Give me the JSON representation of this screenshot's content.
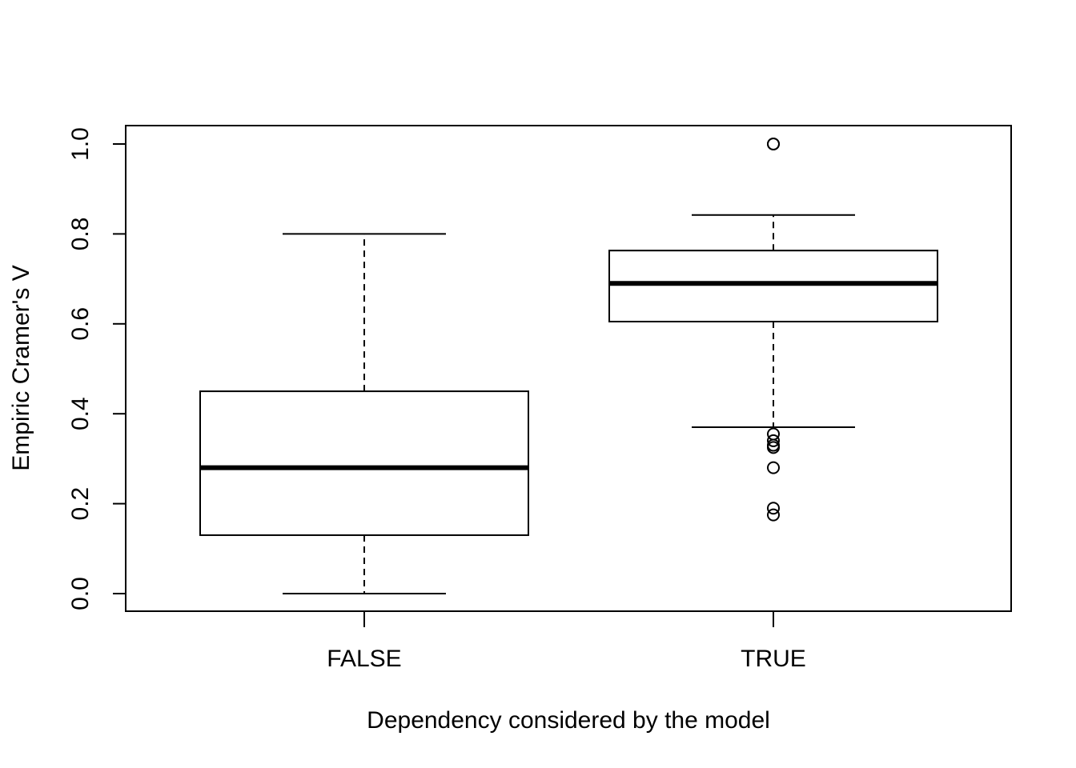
{
  "chart_data": {
    "type": "boxplot",
    "title": "",
    "xlabel": "Dependency considered by the model",
    "ylabel": "Empiric Cramer's V",
    "categories": [
      "FALSE",
      "TRUE"
    ],
    "ylim": [
      -0.04,
      1.04
    ],
    "yticks": [
      0.0,
      0.2,
      0.4,
      0.6,
      0.8,
      1.0
    ],
    "ytick_labels": [
      "0.0",
      "0.2",
      "0.4",
      "0.6",
      "0.8",
      "1.0"
    ],
    "grid": false,
    "legend": "none",
    "boxes": [
      {
        "category": "FALSE",
        "whisker_low": 0.0,
        "q1": 0.13,
        "median": 0.28,
        "q3": 0.45,
        "whisker_high": 0.8,
        "outliers": []
      },
      {
        "category": "TRUE",
        "whisker_low": 0.37,
        "q1": 0.605,
        "median": 0.69,
        "q3": 0.763,
        "whisker_high": 0.842,
        "outliers": [
          1.0,
          1.0,
          0.355,
          0.34,
          0.33,
          0.325,
          0.28,
          0.19,
          0.175
        ]
      }
    ]
  }
}
